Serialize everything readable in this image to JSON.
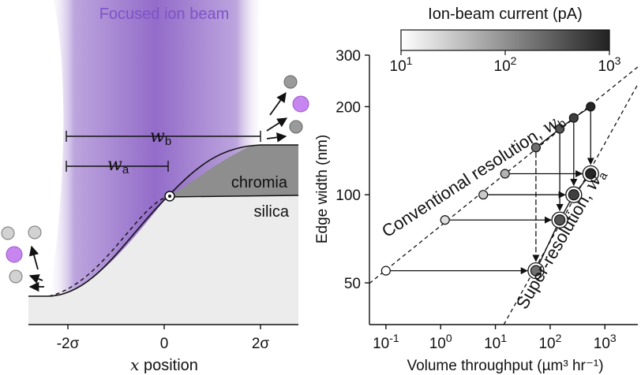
{
  "colors": {
    "beam": "#a98bd3",
    "beam_dark": "#8c62c6",
    "chromia": "#8c8c8c",
    "silica": "#ececec",
    "atom_gray": "#9a9a9a",
    "atom_purple": "#c785f0"
  },
  "left_panel": {
    "beam_label": "Focused ion beam",
    "chromia_label": "chromia",
    "silica_label": "silica",
    "wb_label": "w",
    "wb_sub": "b",
    "wa_label": "w",
    "wa_sub": "a",
    "xaxis_var": "x",
    "xaxis_text": " position",
    "xticks": [
      {
        "value": -2,
        "label": "-2σ"
      },
      {
        "value": 0,
        "label": "0"
      },
      {
        "value": 2,
        "label": "2σ"
      }
    ]
  },
  "chart_data": {
    "type": "scatter",
    "xlabel": "Volume throughput (µm³ hr⁻¹)",
    "ylabel": "Edge width (nm)",
    "xscale": "log",
    "yscale": "log",
    "xlim": [
      0.05,
      4000
    ],
    "ylim": [
      36,
      300
    ],
    "xticks": [
      {
        "value": 0.1,
        "base": "10",
        "exp": "-1"
      },
      {
        "value": 1,
        "base": "10",
        "exp": "0"
      },
      {
        "value": 10,
        "base": "10",
        "exp": "1"
      },
      {
        "value": 100,
        "base": "10",
        "exp": "2"
      },
      {
        "value": 1000,
        "base": "10",
        "exp": "3"
      }
    ],
    "yticks": [
      {
        "value": 50,
        "label": "50"
      },
      {
        "value": 100,
        "label": "100"
      },
      {
        "value": 200,
        "label": "200"
      },
      {
        "value": 300,
        "label": "300"
      }
    ],
    "colorbar": {
      "label": "Ion-beam current (pA)",
      "scale": "log",
      "range": [
        10,
        1000
      ],
      "ticks": [
        {
          "value": 10,
          "base": "10",
          "exp": "1"
        },
        {
          "value": 100,
          "base": "10",
          "exp": "2"
        },
        {
          "value": 1000,
          "base": "10",
          "exp": "3"
        }
      ]
    },
    "lines": [
      {
        "label": "Conventional resolution, ",
        "sub_var": "w",
        "sub": "b",
        "style": "dashed"
      },
      {
        "label": "Super-resolution, ",
        "sub_var": "w",
        "sub": "a",
        "style": "dashed"
      }
    ],
    "conventional": [
      {
        "x": 0.1,
        "y": 55,
        "current": 10
      },
      {
        "x": 1.2,
        "y": 82,
        "current": 20
      },
      {
        "x": 6,
        "y": 100,
        "current": 30
      },
      {
        "x": 15,
        "y": 118,
        "current": 50
      },
      {
        "x": 55,
        "y": 145,
        "current": 200
      },
      {
        "x": 150,
        "y": 168,
        "current": 350
      },
      {
        "x": 270,
        "y": 183,
        "current": 550
      },
      {
        "x": 550,
        "y": 200,
        "current": 900
      }
    ],
    "super_resolution": [
      {
        "x": 55,
        "y": 55,
        "current": 200
      },
      {
        "x": 150,
        "y": 82,
        "current": 350
      },
      {
        "x": 270,
        "y": 100,
        "current": 550
      },
      {
        "x": 550,
        "y": 118,
        "current": 900
      }
    ]
  }
}
